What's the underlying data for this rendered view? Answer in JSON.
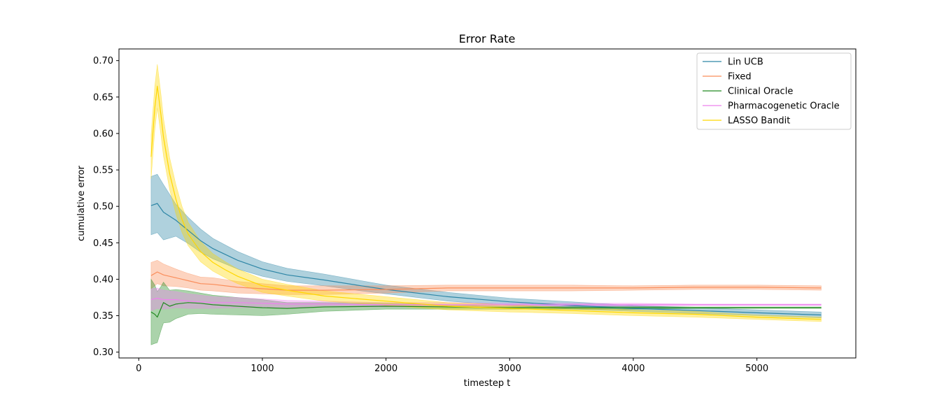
{
  "chart_data": {
    "type": "line",
    "title": "Error Rate",
    "xlabel": "timestep t",
    "ylabel": "cumulative error",
    "xlim": [
      -160,
      5800
    ],
    "ylim": [
      0.292,
      0.716
    ],
    "xticks": [
      0,
      1000,
      2000,
      3000,
      4000,
      5000
    ],
    "yticks": [
      0.3,
      0.35,
      0.4,
      0.45,
      0.5,
      0.55,
      0.6,
      0.65,
      0.7
    ],
    "ytick_labels": [
      "0.30",
      "0.35",
      "0.40",
      "0.45",
      "0.50",
      "0.55",
      "0.60",
      "0.65",
      "0.70"
    ],
    "grid": false,
    "legend_position": "top-right",
    "series": [
      {
        "name": "Lin UCB",
        "color": "#2e86a6",
        "x": [
          100,
          150,
          200,
          300,
          400,
          500,
          600,
          800,
          1000,
          1200,
          1500,
          1800,
          2000,
          2500,
          3000,
          3500,
          4000,
          4500,
          5000,
          5520
        ],
        "y": [
          0.501,
          0.504,
          0.492,
          0.481,
          0.467,
          0.453,
          0.442,
          0.426,
          0.414,
          0.406,
          0.399,
          0.391,
          0.386,
          0.376,
          0.369,
          0.364,
          0.36,
          0.357,
          0.354,
          0.351
        ],
        "band": [
          0.04,
          0.04,
          0.038,
          0.022,
          0.018,
          0.016,
          0.014,
          0.012,
          0.01,
          0.009,
          0.008,
          0.007,
          0.006,
          0.006,
          0.005,
          0.005,
          0.004,
          0.004,
          0.004,
          0.004
        ]
      },
      {
        "name": "Fixed",
        "color": "#fa8d5a",
        "x": [
          100,
          150,
          200,
          300,
          400,
          500,
          600,
          800,
          1000,
          1200,
          1500,
          2000,
          2500,
          3000,
          3500,
          4000,
          4500,
          5000,
          5520
        ],
        "y": [
          0.405,
          0.41,
          0.406,
          0.402,
          0.398,
          0.394,
          0.393,
          0.389,
          0.387,
          0.385,
          0.385,
          0.386,
          0.388,
          0.388,
          0.388,
          0.388,
          0.389,
          0.389,
          0.388
        ],
        "band": [
          0.018,
          0.016,
          0.015,
          0.012,
          0.01,
          0.009,
          0.009,
          0.008,
          0.007,
          0.006,
          0.006,
          0.005,
          0.004,
          0.004,
          0.004,
          0.003,
          0.003,
          0.003,
          0.003
        ]
      },
      {
        "name": "Clinical Oracle",
        "color": "#228b22",
        "x": [
          100,
          130,
          150,
          180,
          200,
          250,
          300,
          400,
          500,
          600,
          800,
          1000,
          1200,
          1500,
          2000,
          2500,
          3000,
          3500,
          4000,
          4500,
          5000,
          5520
        ],
        "y": [
          0.355,
          0.352,
          0.348,
          0.36,
          0.368,
          0.363,
          0.366,
          0.368,
          0.367,
          0.365,
          0.363,
          0.361,
          0.36,
          0.362,
          0.363,
          0.362,
          0.361,
          0.361,
          0.361,
          0.361,
          0.361,
          0.361
        ],
        "band": [
          0.045,
          0.04,
          0.035,
          0.03,
          0.028,
          0.022,
          0.02,
          0.016,
          0.014,
          0.013,
          0.012,
          0.011,
          0.008,
          0.006,
          0.004,
          0.003,
          0.002,
          0.002,
          0.002,
          0.001,
          0.001,
          0.001
        ]
      },
      {
        "name": "Pharmacogenetic Oracle",
        "color": "#ee82ee",
        "x": [
          100,
          150,
          200,
          300,
          400,
          500,
          600,
          800,
          1000,
          1200,
          1500,
          2000,
          2500,
          3000,
          3500,
          4000,
          4500,
          5000,
          5520
        ],
        "y": [
          0.372,
          0.374,
          0.372,
          0.372,
          0.37,
          0.369,
          0.368,
          0.368,
          0.367,
          0.366,
          0.366,
          0.365,
          0.365,
          0.365,
          0.365,
          0.365,
          0.365,
          0.365,
          0.365
        ],
        "band": [
          0.015,
          0.014,
          0.013,
          0.011,
          0.01,
          0.009,
          0.008,
          0.007,
          0.006,
          0.005,
          0.004,
          0.003,
          0.003,
          0.002,
          0.002,
          0.002,
          0.001,
          0.001,
          0.001
        ]
      },
      {
        "name": "LASSO Bandit",
        "color": "#ffd700",
        "x": [
          100,
          130,
          150,
          180,
          200,
          250,
          300,
          350,
          400,
          500,
          600,
          700,
          800,
          1000,
          1200,
          1500,
          2000,
          2500,
          3000,
          3500,
          4000,
          4500,
          5000,
          5520
        ],
        "y": [
          0.568,
          0.635,
          0.665,
          0.625,
          0.595,
          0.545,
          0.51,
          0.482,
          0.462,
          0.438,
          0.423,
          0.413,
          0.404,
          0.391,
          0.385,
          0.377,
          0.37,
          0.363,
          0.36,
          0.357,
          0.354,
          0.352,
          0.348,
          0.345
        ],
        "band": [
          0.03,
          0.03,
          0.03,
          0.028,
          0.026,
          0.022,
          0.02,
          0.018,
          0.016,
          0.014,
          0.012,
          0.011,
          0.01,
          0.009,
          0.008,
          0.007,
          0.006,
          0.005,
          0.005,
          0.004,
          0.004,
          0.004,
          0.003,
          0.003
        ]
      }
    ]
  }
}
